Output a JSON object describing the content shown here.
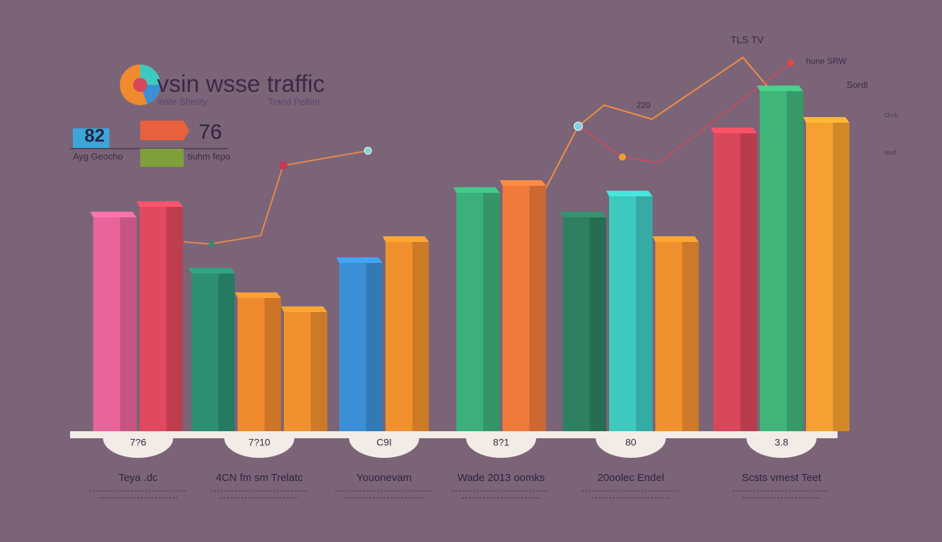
{
  "chart_data": {
    "type": "bar",
    "title": "vsin wsse traffic",
    "subtitle": [
      "inste Shecty",
      "Trand Pelbm"
    ],
    "kpis": [
      {
        "value": 82,
        "label": "Ayg Geocho",
        "color": "#3aa6d9"
      },
      {
        "value": 76,
        "label": "tiuhm fepo",
        "color": "#e8613c"
      }
    ],
    "annotations": [
      "TLS TV",
      "hune SRW",
      "Sordi",
      "220",
      "Orcb",
      "tssd"
    ],
    "categories": [
      "Teya .dc",
      "4CN fm sm Trelatc",
      "Youonevam",
      "Wade 2013 oomks",
      "20oolec Endel",
      "Scsts vmest Teet"
    ],
    "category_badges": [
      "7?6",
      "7?10",
      "C9I",
      "8?1",
      "80",
      "3.8"
    ],
    "ylim": [
      0,
      100
    ],
    "series": [
      {
        "values": [
          61,
          45,
          48,
          68,
          61,
          85
        ],
        "colors": [
          "#e8649a",
          "#2e8f73",
          "#3a8fd6",
          "#3bb07a",
          "#2e8060",
          "#d9475a"
        ]
      },
      {
        "values": [
          64,
          38,
          54,
          70,
          67,
          97
        ],
        "colors": [
          "#e0495f",
          "#f08a2e",
          "#f0902e",
          "#f07a3a",
          "#3ec9c0",
          "#3fb57a"
        ]
      },
      {
        "values": [
          null,
          34,
          null,
          null,
          54,
          88
        ],
        "colors": [
          null,
          "#f0902e",
          null,
          null,
          "#f0902e",
          "#f5a030"
        ]
      }
    ]
  }
}
